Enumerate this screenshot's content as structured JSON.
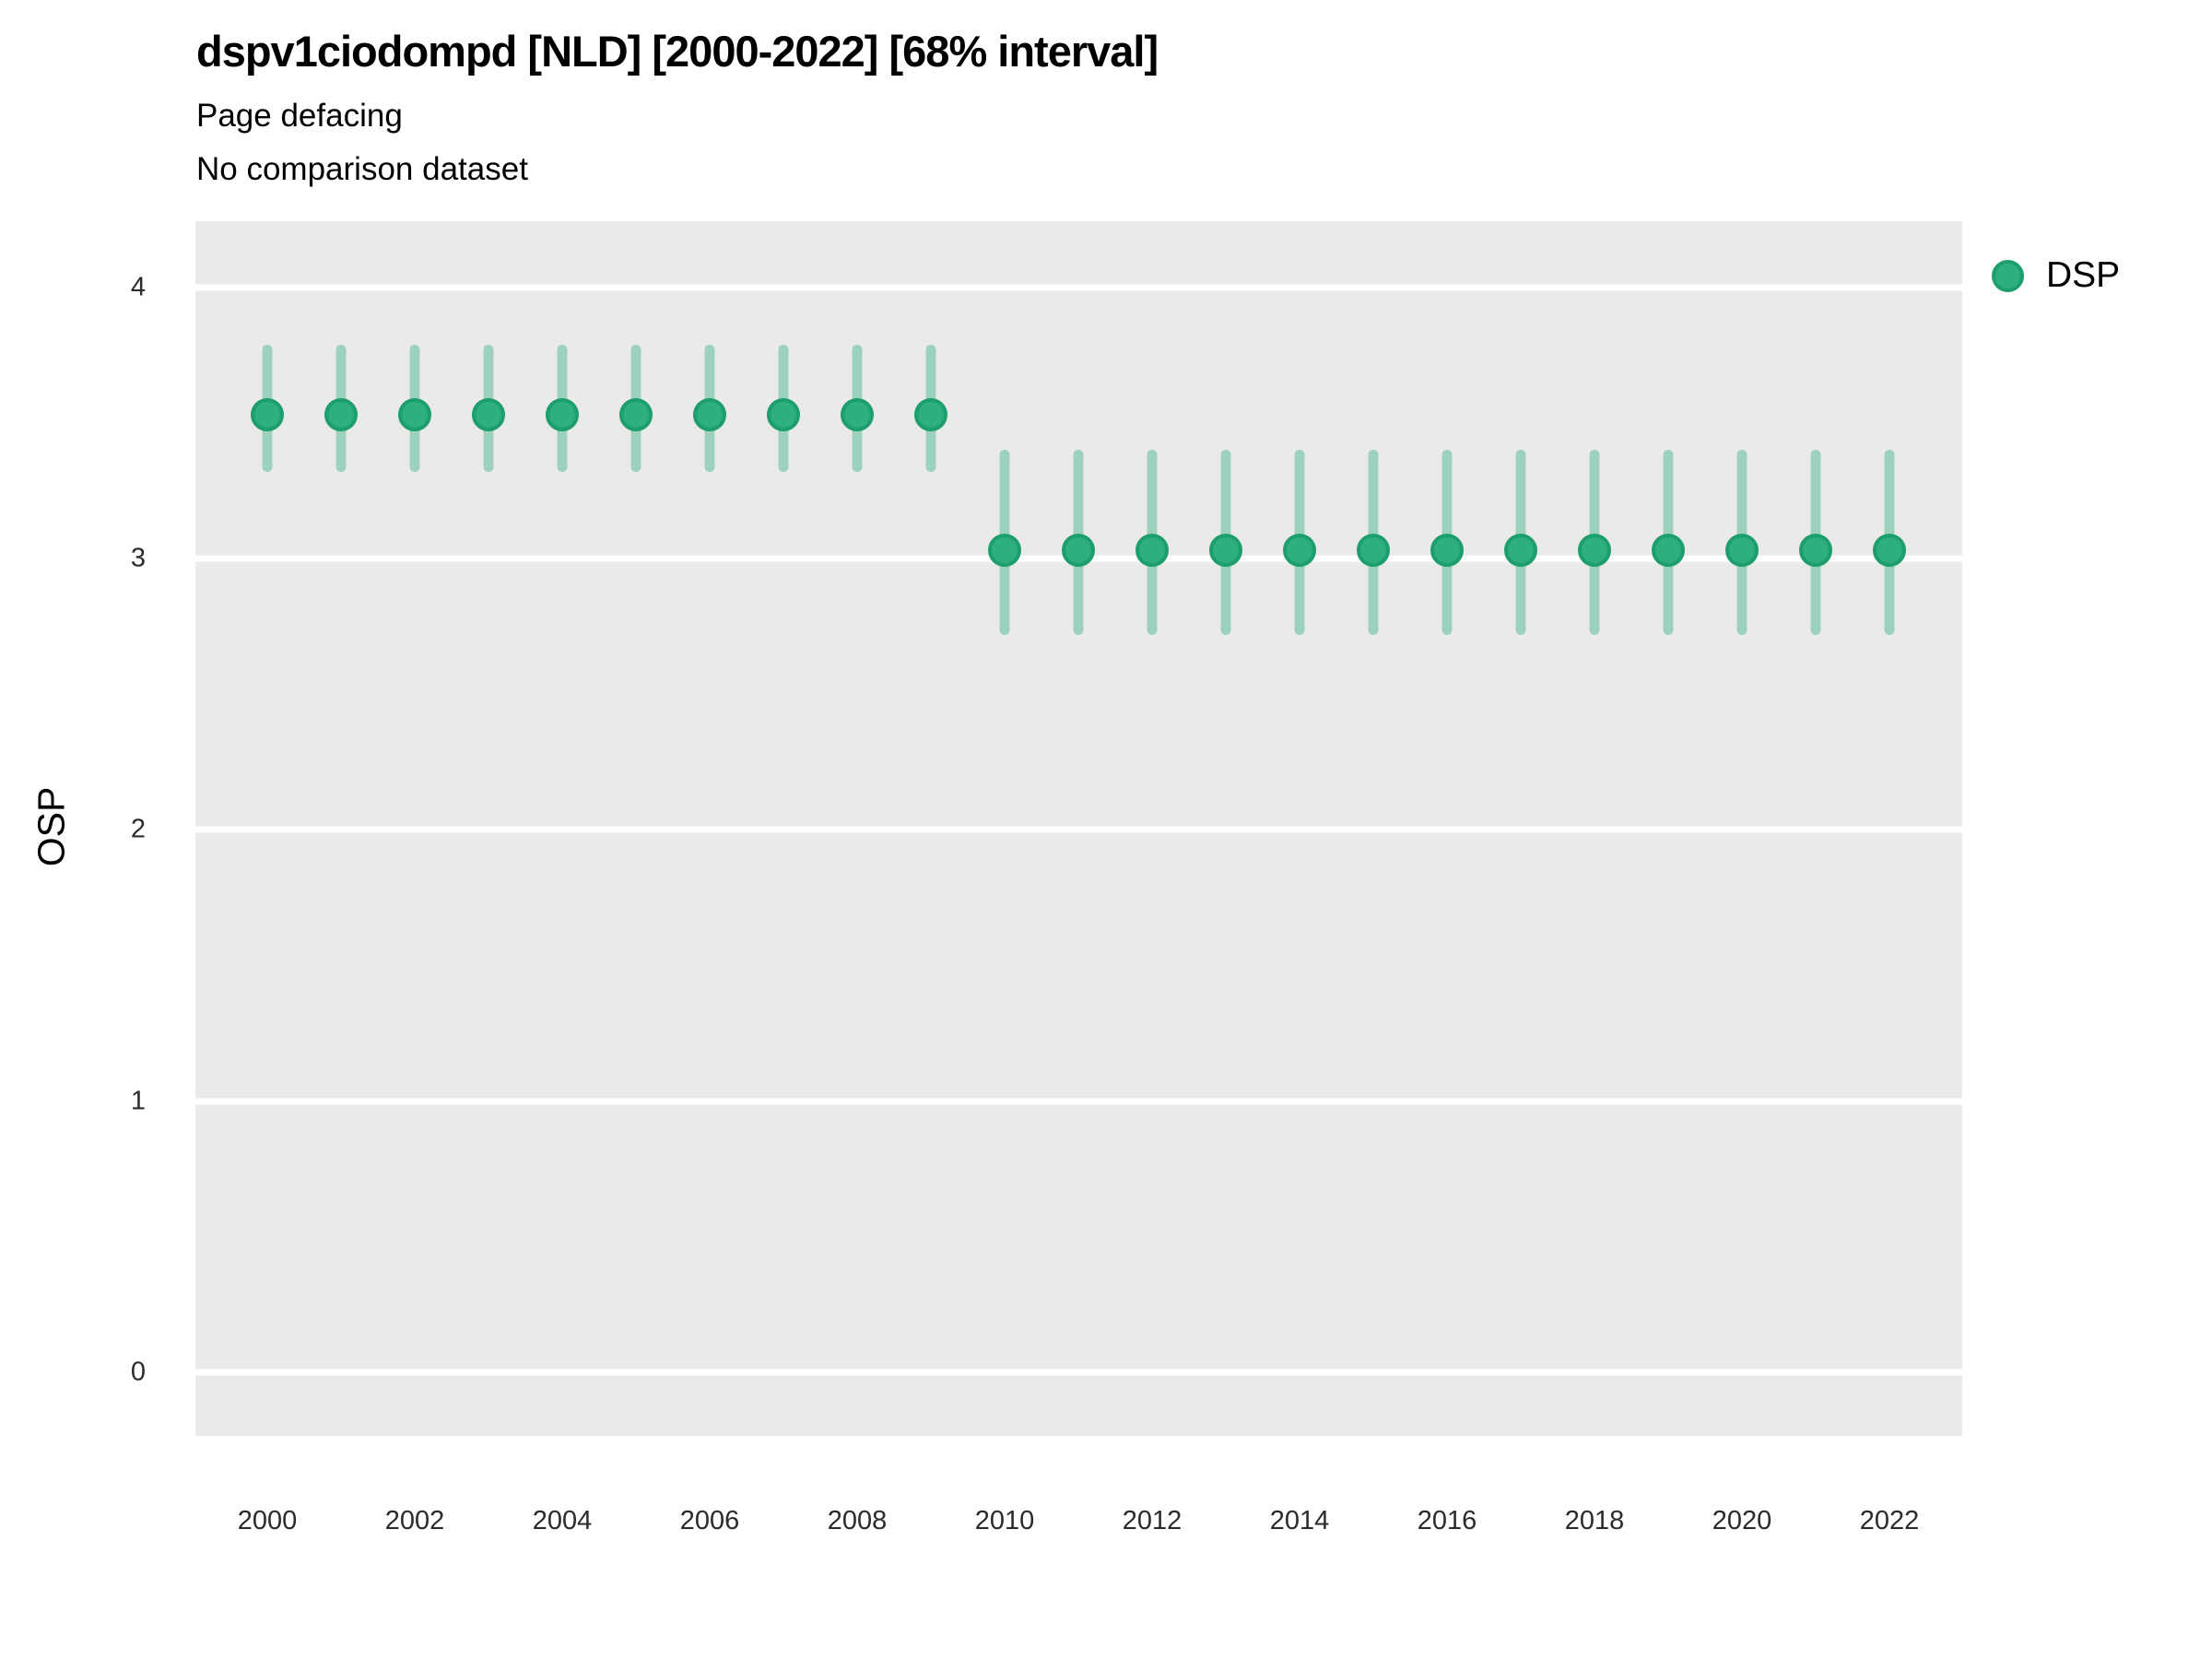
{
  "header": {
    "title": "dspv1ciodompd [NLD] [2000-2022] [68% interval]",
    "subtitle1": "Page defacing",
    "subtitle2": "No comparison dataset"
  },
  "legend": {
    "label": "DSP"
  },
  "chart_data": {
    "type": "scatter",
    "title": "dspv1ciodompd [NLD] [2000-2022] [68% interval]",
    "subtitle": [
      "Page defacing",
      "No comparison dataset"
    ],
    "xlabel": "",
    "ylabel": "OSP",
    "interval_level": "68%",
    "x": [
      2000,
      2001,
      2002,
      2003,
      2004,
      2005,
      2006,
      2007,
      2008,
      2009,
      2010,
      2011,
      2012,
      2013,
      2014,
      2015,
      2016,
      2017,
      2018,
      2019,
      2020,
      2021,
      2022
    ],
    "series": [
      {
        "name": "DSP",
        "values": [
          3.53,
          3.53,
          3.53,
          3.53,
          3.53,
          3.53,
          3.53,
          3.53,
          3.53,
          3.53,
          3.03,
          3.03,
          3.03,
          3.03,
          3.03,
          3.03,
          3.03,
          3.03,
          3.03,
          3.03,
          3.03,
          3.03,
          3.03
        ],
        "interval_low": [
          3.32,
          3.32,
          3.32,
          3.32,
          3.32,
          3.32,
          3.32,
          3.32,
          3.32,
          3.32,
          2.72,
          2.72,
          2.72,
          2.72,
          2.72,
          2.72,
          2.72,
          2.72,
          2.72,
          2.72,
          2.72,
          2.72,
          2.72
        ],
        "interval_high": [
          3.79,
          3.79,
          3.79,
          3.79,
          3.79,
          3.79,
          3.79,
          3.79,
          3.79,
          3.79,
          3.4,
          3.4,
          3.4,
          3.4,
          3.4,
          3.4,
          3.4,
          3.4,
          3.4,
          3.4,
          3.4,
          3.4,
          3.4
        ]
      }
    ],
    "xticks": [
      2000,
      2002,
      2004,
      2006,
      2008,
      2010,
      2012,
      2014,
      2016,
      2018,
      2020,
      2022
    ],
    "yticks": [
      0,
      1,
      2,
      3,
      4
    ],
    "ylim": [
      -0.234,
      4.244
    ],
    "grid": "horizontal-major-white",
    "legend_position": "right-top",
    "colors": {
      "point_fill": "#2FAE80",
      "point_stroke": "#1C9F6C",
      "interval": "rgba(47,174,128,0.42)",
      "plot_bg": "#EAEAEA",
      "gridline": "#FFFFFF"
    }
  }
}
